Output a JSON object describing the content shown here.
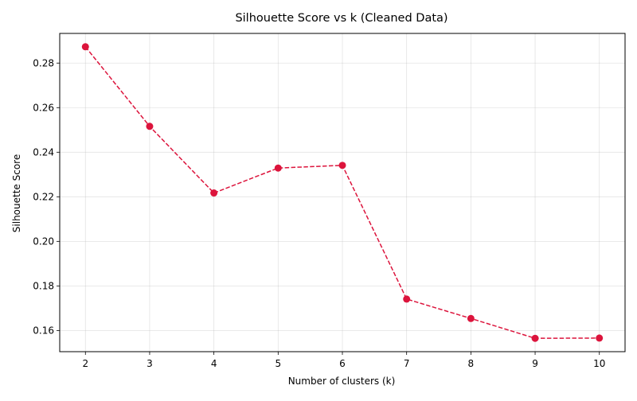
{
  "chart_data": {
    "type": "line",
    "title": "Silhouette Score vs k (Cleaned Data)",
    "xlabel": "Number of clusters (k)",
    "ylabel": "Silhouette Score",
    "x": [
      2,
      3,
      4,
      5,
      6,
      7,
      8,
      9,
      10
    ],
    "series": [
      {
        "values": [
          0.2873,
          0.2516,
          0.2217,
          0.2329,
          0.2341,
          0.1741,
          0.1654,
          0.1565,
          0.1566
        ],
        "color": "#dc143c",
        "line_style": "dashed",
        "marker": "circle"
      }
    ],
    "xlim": [
      1.6,
      10.4
    ],
    "ylim": [
      0.1505,
      0.2933
    ],
    "xticks": [
      2,
      3,
      4,
      5,
      6,
      7,
      8,
      9,
      10
    ],
    "xtick_labels": [
      "2",
      "3",
      "4",
      "5",
      "6",
      "7",
      "8",
      "9",
      "10"
    ],
    "yticks": [
      0.16,
      0.18,
      0.2,
      0.22,
      0.24,
      0.26,
      0.28
    ],
    "ytick_labels": [
      "0.16",
      "0.18",
      "0.20",
      "0.22",
      "0.24",
      "0.26",
      "0.28"
    ],
    "grid": true,
    "legend": false
  }
}
